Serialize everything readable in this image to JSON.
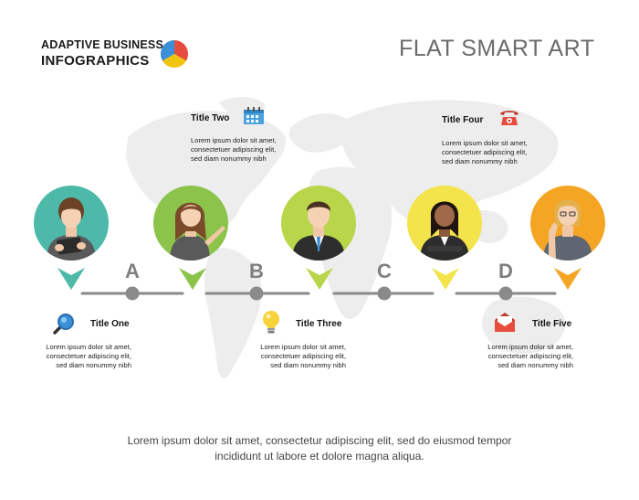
{
  "header": {
    "brand_line1": "ADAPTIVE BUSINESS",
    "brand_line2": "INFOGRAPHICS",
    "title": "FLAT SMART ART"
  },
  "colors": {
    "teal": "#4cb9a9",
    "green": "#8cc34b",
    "lime": "#b9d54a",
    "yellow": "#f2e44a",
    "orange": "#f5a524",
    "line_gray": "#8a8a8a",
    "map_gray": "#ededed"
  },
  "stages": [
    {
      "letter": "A"
    },
    {
      "letter": "B"
    },
    {
      "letter": "C"
    },
    {
      "letter": "D"
    }
  ],
  "items": [
    {
      "title": "Title One",
      "icon": "magnifier-icon",
      "desc": [
        "Lorem ipsum dolor sit amet,",
        "consectetuer adipiscing elit,",
        "sed diam nonummy nibh"
      ]
    },
    {
      "title": "Title Two",
      "icon": "calendar-icon",
      "desc": [
        "Lorem ipsum dolor sit amet,",
        "consectetuer adipiscing elit,",
        "sed diam nonummy nibh"
      ]
    },
    {
      "title": "Title Three",
      "icon": "lightbulb-icon",
      "desc": [
        "Lorem ipsum dolor sit amet,",
        "consectetuer adipiscing elit,",
        "sed diam nonummy nibh"
      ]
    },
    {
      "title": "Title Four",
      "icon": "telephone-icon",
      "desc": [
        "Lorem ipsum dolor sit amet,",
        "consectetuer adipiscing elit,",
        "sed diam nonummy nibh"
      ]
    },
    {
      "title": "Title Five",
      "icon": "envelope-icon",
      "desc": [
        "Lorem ipsum dolor sit amet,",
        "consectetuer adipiscing elit,",
        "sed diam nonummy nibh"
      ]
    }
  ],
  "footer": {
    "line1": "Lorem ipsum dolor sit amet, consectetur adipiscing elit, sed do eiusmod tempor",
    "line2": "incididunt ut labore et dolore magna aliqua."
  }
}
